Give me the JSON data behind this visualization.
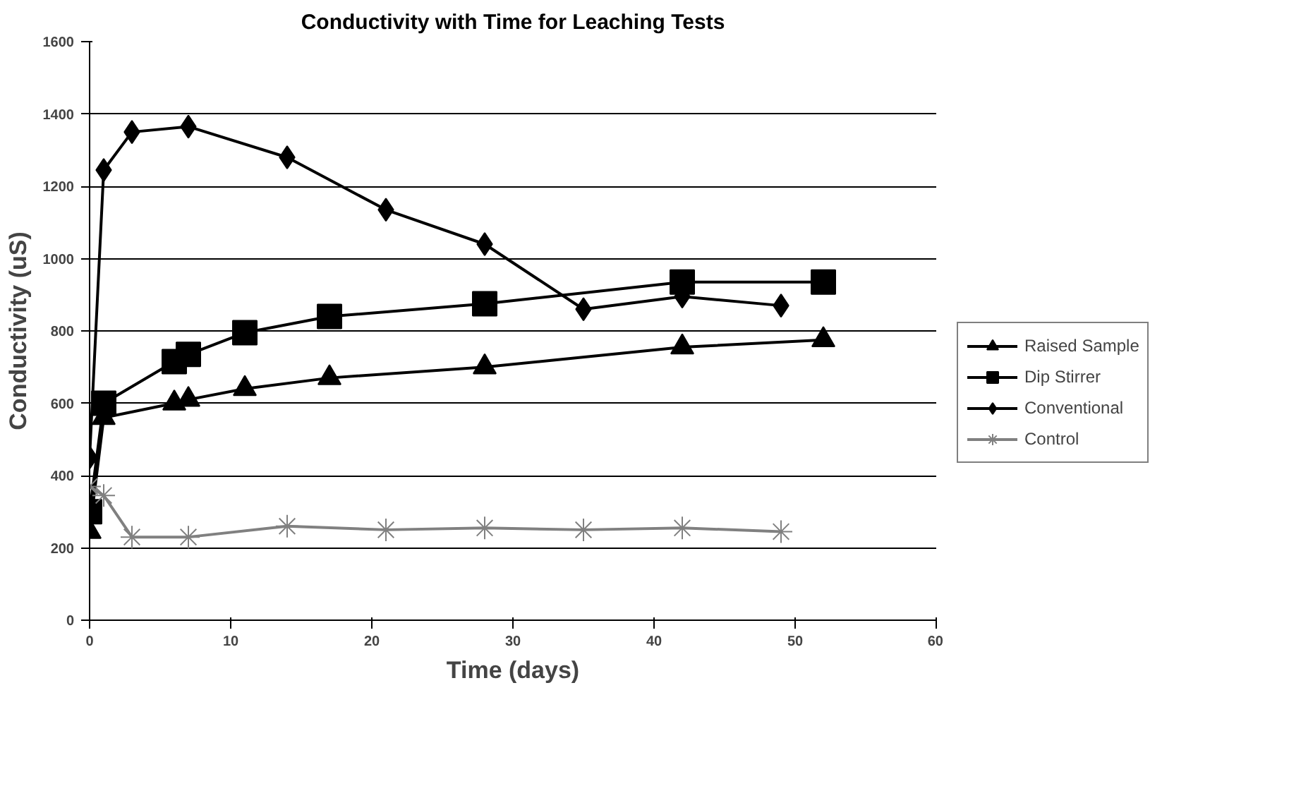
{
  "chart_data": {
    "type": "line",
    "title": "Conductivity with Time for Leaching Tests",
    "xlabel": "Time (days)",
    "ylabel": "Conductivity (uS)",
    "xlim": [
      0,
      60
    ],
    "xticks": [
      0,
      10,
      20,
      30,
      40,
      50,
      60
    ],
    "ylim": [
      0,
      1600
    ],
    "yticks": [
      0,
      200,
      400,
      600,
      800,
      1000,
      1200,
      1400,
      1600
    ],
    "grid": "y",
    "legend": "right",
    "series": [
      {
        "name": "Raised Sample",
        "color": "#000000",
        "marker": "triangle",
        "x": [
          0,
          1,
          6,
          7,
          11,
          17,
          28,
          42,
          52
        ],
        "values": [
          245,
          560,
          600,
          610,
          640,
          670,
          700,
          755,
          775
        ]
      },
      {
        "name": "Dip Stirrer",
        "color": "#000000",
        "marker": "square",
        "x": [
          0,
          1,
          6,
          7,
          11,
          17,
          28,
          42,
          52
        ],
        "values": [
          300,
          600,
          715,
          735,
          795,
          840,
          875,
          935,
          935
        ]
      },
      {
        "name": "Conventional",
        "color": "#000000",
        "marker": "diamond",
        "x": [
          0,
          1,
          3,
          7,
          14,
          21,
          28,
          35,
          42,
          49
        ],
        "values": [
          450,
          1245,
          1350,
          1365,
          1280,
          1135,
          1040,
          860,
          895,
          870
        ]
      },
      {
        "name": "Control",
        "color": "#808080",
        "marker": "cross",
        "x": [
          0,
          1,
          3,
          7,
          14,
          21,
          28,
          35,
          42,
          49
        ],
        "values": [
          370,
          345,
          230,
          230,
          260,
          250,
          255,
          250,
          255,
          245
        ]
      }
    ]
  }
}
